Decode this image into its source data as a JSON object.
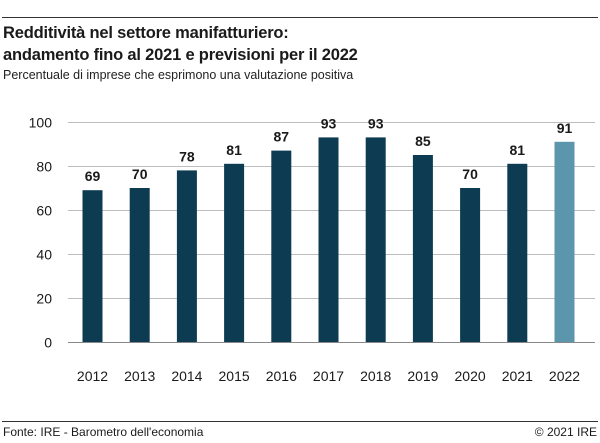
{
  "header": {
    "title_line1": "Redditività nel settore manifatturiero:",
    "title_line2": "andamento fino al 2021 e previsioni per il 2022",
    "subtitle": "Percentuale di imprese che esprimono una valutazione positiva"
  },
  "footer": {
    "source": "Fonte: IRE - Barometro dell'economia",
    "copyright": "© 2021 IRE"
  },
  "chart_data": {
    "type": "bar",
    "categories": [
      "2012",
      "2013",
      "2014",
      "2015",
      "2016",
      "2017",
      "2018",
      "2019",
      "2020",
      "2021",
      "2022"
    ],
    "values": [
      69,
      70,
      78,
      81,
      87,
      93,
      93,
      85,
      70,
      81,
      91
    ],
    "data_labels": [
      "69",
      "70",
      "78",
      "81",
      "87",
      "93",
      "93",
      "85",
      "70",
      "81",
      "91"
    ],
    "ylim": [
      0,
      100
    ],
    "yticks": [
      0,
      20,
      40,
      60,
      80,
      100
    ],
    "grid": true,
    "colors": {
      "actual": "#0d3b52",
      "forecast": "#5b96ad",
      "grid": "#bdbdbd"
    },
    "forecast_categories": [
      "2022"
    ]
  }
}
